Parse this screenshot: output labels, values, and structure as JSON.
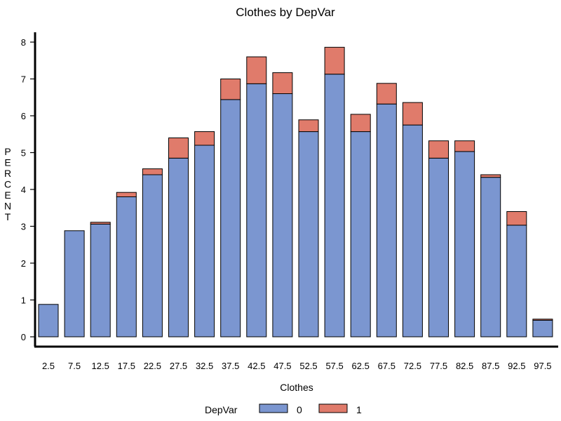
{
  "chart_data": {
    "type": "bar",
    "stacked": true,
    "title": "Clothes by DepVar",
    "xlabel": "Clothes",
    "ylabel": "PERCENT",
    "categories": [
      "2.5",
      "7.5",
      "12.5",
      "17.5",
      "22.5",
      "27.5",
      "32.5",
      "37.5",
      "42.5",
      "47.5",
      "52.5",
      "57.5",
      "62.5",
      "67.5",
      "72.5",
      "77.5",
      "82.5",
      "87.5",
      "92.5",
      "97.5"
    ],
    "series": [
      {
        "name": "0",
        "color": "#7b96d0",
        "values": [
          0.88,
          2.88,
          3.06,
          3.8,
          4.4,
          4.85,
          5.2,
          6.44,
          6.87,
          6.6,
          5.57,
          7.13,
          5.57,
          6.32,
          5.75,
          4.85,
          5.03,
          4.33,
          3.03,
          0.45
        ]
      },
      {
        "name": "1",
        "color": "#e07b6b",
        "values": [
          0.0,
          0.0,
          0.05,
          0.12,
          0.16,
          0.55,
          0.37,
          0.56,
          0.73,
          0.57,
          0.32,
          0.73,
          0.47,
          0.56,
          0.61,
          0.47,
          0.29,
          0.07,
          0.37,
          0.03
        ]
      }
    ],
    "ylim": [
      0,
      8
    ],
    "yticks": [
      0,
      1,
      2,
      3,
      4,
      5,
      6,
      7,
      8
    ],
    "grid": false,
    "legend": {
      "title": "DepVar",
      "placement": "bottom"
    }
  }
}
